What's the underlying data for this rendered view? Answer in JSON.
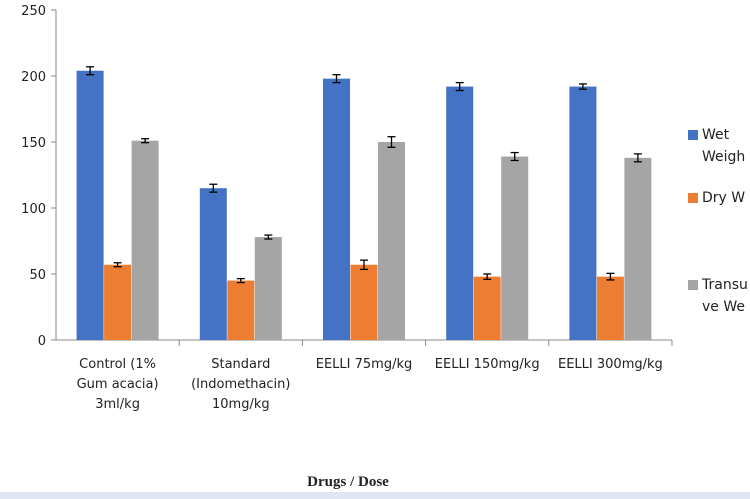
{
  "chart_data": {
    "type": "bar",
    "title": "",
    "xlabel": "Drugs / Dose",
    "ylabel": "",
    "ylim": [
      0,
      250
    ],
    "yticks": [
      0,
      50,
      100,
      150,
      200,
      250
    ],
    "grid": false,
    "legend_position": "right",
    "categories": [
      [
        "Control (1%",
        "Gum acacia)",
        "3ml/kg"
      ],
      [
        "Standard",
        "(Indomethacin)",
        "10mg/kg"
      ],
      [
        "EELLI 75mg/kg"
      ],
      [
        "EELLI 150mg/kg"
      ],
      [
        "EELLI 300mg/kg"
      ]
    ],
    "series": [
      {
        "legend": [
          "Wet",
          "Weigh"
        ],
        "color": "#4472c4",
        "values": [
          204,
          115,
          198,
          192,
          192
        ],
        "errors": [
          3,
          3,
          3,
          3,
          2
        ]
      },
      {
        "legend": [
          "Dry W"
        ],
        "color": "#ed7d31",
        "values": [
          57,
          45,
          57,
          48,
          48
        ],
        "errors": [
          1.5,
          1.5,
          3.5,
          2,
          2.5
        ]
      },
      {
        "legend": [
          "Transu",
          "ve We"
        ],
        "color": "#a5a5a5",
        "values": [
          151,
          78,
          150,
          139,
          138
        ],
        "errors": [
          1.5,
          1.5,
          4,
          3,
          3
        ]
      }
    ]
  }
}
